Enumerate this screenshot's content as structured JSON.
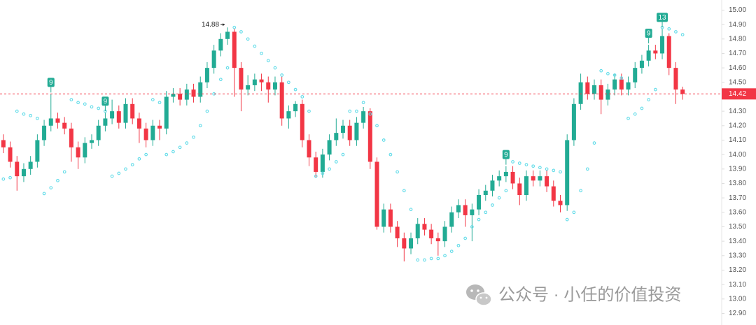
{
  "chart_data": {
    "type": "candlestick",
    "ylim": [
      12.82,
      15.07
    ],
    "yticks": [
      {
        "value": 15,
        "label": "15.00"
      },
      {
        "value": 14.9,
        "label": "14.90"
      },
      {
        "value": 14.8,
        "label": "14.80"
      },
      {
        "value": 14.7,
        "label": "14.70"
      },
      {
        "value": 14.6,
        "label": "14.60"
      },
      {
        "value": 14.5,
        "label": "14.50"
      },
      {
        "value": 14.4,
        "label": "14.40"
      },
      {
        "value": 14.3,
        "label": "14.30"
      },
      {
        "value": 14.2,
        "label": "14.20"
      },
      {
        "value": 14.1,
        "label": "14.10"
      },
      {
        "value": 14,
        "label": "14.00"
      },
      {
        "value": 13.9,
        "label": "13.90"
      },
      {
        "value": 13.8,
        "label": "13.80"
      },
      {
        "value": 13.7,
        "label": "13.70"
      },
      {
        "value": 13.6,
        "label": "13.60"
      },
      {
        "value": 13.5,
        "label": "13.50"
      },
      {
        "value": 13.4,
        "label": "13.40"
      },
      {
        "value": 13.3,
        "label": "13.30"
      },
      {
        "value": 13.2,
        "label": "13.20"
      },
      {
        "value": 13.1,
        "label": "13.10"
      },
      {
        "value": 13,
        "label": "13.00"
      },
      {
        "value": 12.9,
        "label": "12.90"
      }
    ],
    "up_color": "#22ab94",
    "down_color": "#f23645",
    "sar_color": "#5fdbe8",
    "open": [
      14.1,
      14.05,
      13.95,
      13.85,
      13.9,
      13.95,
      14.1,
      14.2,
      14.25,
      14.22,
      14.18,
      14.05,
      13.98,
      14.08,
      14.1,
      14.2,
      14.25,
      14.3,
      14.22,
      14.35,
      14.25,
      14.18,
      14.1,
      14.2,
      14.18,
      14.4,
      14.42,
      14.38,
      14.45,
      14.4,
      14.5,
      14.6,
      14.72,
      14.8,
      14.85,
      14.6,
      14.45,
      14.48,
      14.52,
      14.5,
      14.45,
      14.5,
      14.25,
      14.3,
      14.35,
      14.1,
      13.98,
      13.88,
      14.0,
      14.1,
      14.15,
      14.2,
      14.1,
      14.22,
      14.3,
      13.95,
      13.5,
      13.62,
      13.5,
      13.42,
      13.35,
      13.42,
      13.52,
      13.48,
      13.42,
      13.4,
      13.5,
      13.6,
      13.65,
      13.58,
      13.62,
      13.72,
      13.75,
      13.82,
      13.85,
      13.88,
      13.8,
      13.72,
      13.85,
      13.82,
      13.85,
      13.78,
      13.68,
      13.65,
      14.1,
      14.35,
      14.5,
      14.42,
      14.48,
      14.38,
      14.45,
      14.52,
      14.45,
      14.5,
      14.6,
      14.65,
      14.72,
      14.7,
      14.82,
      14.6,
      14.45
    ],
    "high": [
      14.14,
      14.09,
      13.99,
      13.94,
      13.99,
      14.14,
      14.24,
      14.42,
      14.29,
      14.26,
      14.22,
      14.09,
      14.12,
      14.14,
      14.24,
      14.29,
      14.38,
      14.34,
      14.39,
      14.39,
      14.29,
      14.22,
      14.24,
      14.24,
      14.44,
      14.46,
      14.46,
      14.49,
      14.49,
      14.54,
      14.64,
      14.76,
      14.84,
      14.88,
      14.87,
      14.64,
      14.55,
      14.56,
      14.56,
      14.54,
      14.54,
      14.54,
      14.34,
      14.37,
      14.38,
      14.14,
      14.02,
      14.04,
      14.14,
      14.25,
      14.24,
      14.24,
      14.26,
      14.33,
      14.32,
      13.98,
      13.66,
      13.66,
      13.54,
      13.46,
      13.46,
      13.56,
      13.56,
      13.52,
      13.46,
      13.54,
      13.64,
      13.69,
      13.69,
      13.66,
      13.76,
      13.79,
      13.86,
      13.89,
      13.92,
      13.92,
      13.84,
      13.89,
      13.89,
      13.89,
      13.89,
      13.82,
      13.72,
      14.14,
      14.39,
      14.56,
      14.54,
      14.52,
      14.52,
      14.49,
      14.56,
      14.56,
      14.54,
      14.64,
      14.69,
      14.76,
      14.76,
      14.87,
      14.84,
      14.64,
      14.47
    ],
    "low": [
      14.01,
      13.91,
      13.75,
      13.81,
      13.86,
      13.91,
      14.06,
      14.16,
      14.18,
      14.14,
      13.95,
      13.9,
      13.94,
      14.04,
      14.06,
      14.16,
      14.21,
      14.18,
      14.18,
      14.21,
      14.08,
      14.05,
      14.06,
      14.1,
      14.14,
      14.36,
      14.34,
      14.34,
      14.36,
      14.36,
      14.46,
      14.56,
      14.68,
      14.76,
      14.4,
      14.3,
      14.41,
      14.44,
      14.44,
      14.36,
      14.41,
      14.2,
      14.18,
      14.26,
      14.05,
      13.92,
      13.84,
      13.84,
      13.96,
      14.06,
      14.11,
      14.06,
      14.06,
      14.18,
      13.9,
      13.48,
      13.46,
      13.46,
      13.36,
      13.26,
      13.31,
      13.38,
      13.44,
      13.38,
      13.3,
      13.36,
      13.46,
      13.56,
      13.5,
      13.4,
      13.58,
      13.68,
      13.71,
      13.78,
      13.81,
      13.76,
      13.65,
      13.68,
      13.78,
      13.78,
      13.74,
      13.64,
      13.6,
      13.61,
      14.06,
      14.31,
      14.38,
      14.38,
      14.28,
      14.34,
      14.41,
      14.41,
      14.41,
      14.46,
      14.56,
      14.61,
      14.66,
      14.66,
      14.55,
      14.35,
      14.38
    ],
    "close": [
      14.05,
      13.95,
      13.85,
      13.9,
      13.95,
      14.1,
      14.2,
      14.25,
      14.22,
      14.18,
      14.05,
      13.98,
      14.08,
      14.1,
      14.2,
      14.25,
      14.3,
      14.22,
      14.35,
      14.25,
      14.18,
      14.1,
      14.2,
      14.18,
      14.4,
      14.42,
      14.38,
      14.45,
      14.4,
      14.5,
      14.6,
      14.72,
      14.8,
      14.85,
      14.6,
      14.45,
      14.48,
      14.52,
      14.5,
      14.45,
      14.5,
      14.25,
      14.3,
      14.35,
      14.1,
      13.98,
      13.88,
      14.0,
      14.1,
      14.15,
      14.2,
      14.1,
      14.22,
      14.3,
      13.95,
      13.5,
      13.62,
      13.5,
      13.42,
      13.35,
      13.42,
      13.52,
      13.48,
      13.42,
      13.4,
      13.5,
      13.6,
      13.65,
      13.58,
      13.62,
      13.72,
      13.75,
      13.82,
      13.85,
      13.88,
      13.8,
      13.72,
      13.85,
      13.82,
      13.85,
      13.78,
      13.68,
      13.65,
      14.1,
      14.35,
      14.5,
      14.42,
      14.48,
      14.38,
      14.45,
      14.52,
      14.45,
      14.5,
      14.6,
      14.65,
      14.72,
      14.7,
      14.82,
      14.6,
      14.45,
      14.42
    ],
    "sar": [
      13.83,
      13.84,
      14.3,
      14.28,
      14.27,
      14.25,
      13.73,
      13.77,
      13.82,
      13.88,
      14.38,
      14.36,
      14.35,
      14.33,
      14.32,
      14.3,
      13.85,
      13.87,
      13.9,
      13.93,
      13.97,
      14.0,
      14.38,
      14.36,
      14.0,
      14.02,
      14.05,
      14.08,
      14.12,
      14.2,
      14.3,
      14.42,
      14.52,
      14.6,
      14.88,
      14.85,
      14.8,
      14.75,
      14.7,
      14.65,
      14.6,
      14.55,
      14.5,
      14.45,
      14.4,
      14.3,
      13.85,
      13.87,
      13.9,
      13.95,
      14.0,
      14.3,
      14.3,
      14.36,
      14.28,
      14.2,
      14.1,
      14.0,
      13.88,
      13.75,
      13.62,
      13.27,
      13.27,
      13.28,
      13.28,
      13.3,
      13.33,
      13.37,
      13.42,
      13.5,
      13.55,
      13.6,
      13.65,
      13.7,
      13.75,
      13.95,
      13.94,
      13.93,
      13.92,
      13.91,
      13.9,
      13.89,
      13.88,
      13.55,
      13.6,
      13.75,
      13.9,
      14.08,
      14.58,
      14.56,
      14.55,
      14.53,
      14.25,
      14.28,
      14.32,
      14.38,
      14.45,
      14.88,
      14.87,
      14.85,
      14.83
    ],
    "markers": [
      {
        "candle": 7,
        "label": "9"
      },
      {
        "candle": 15,
        "label": "9"
      },
      {
        "candle": 74,
        "label": "9"
      },
      {
        "candle": 95,
        "label": "9"
      },
      {
        "candle": 97,
        "label": "13"
      }
    ],
    "watermark": "公众号 · 小任的价值投资"
  }
}
